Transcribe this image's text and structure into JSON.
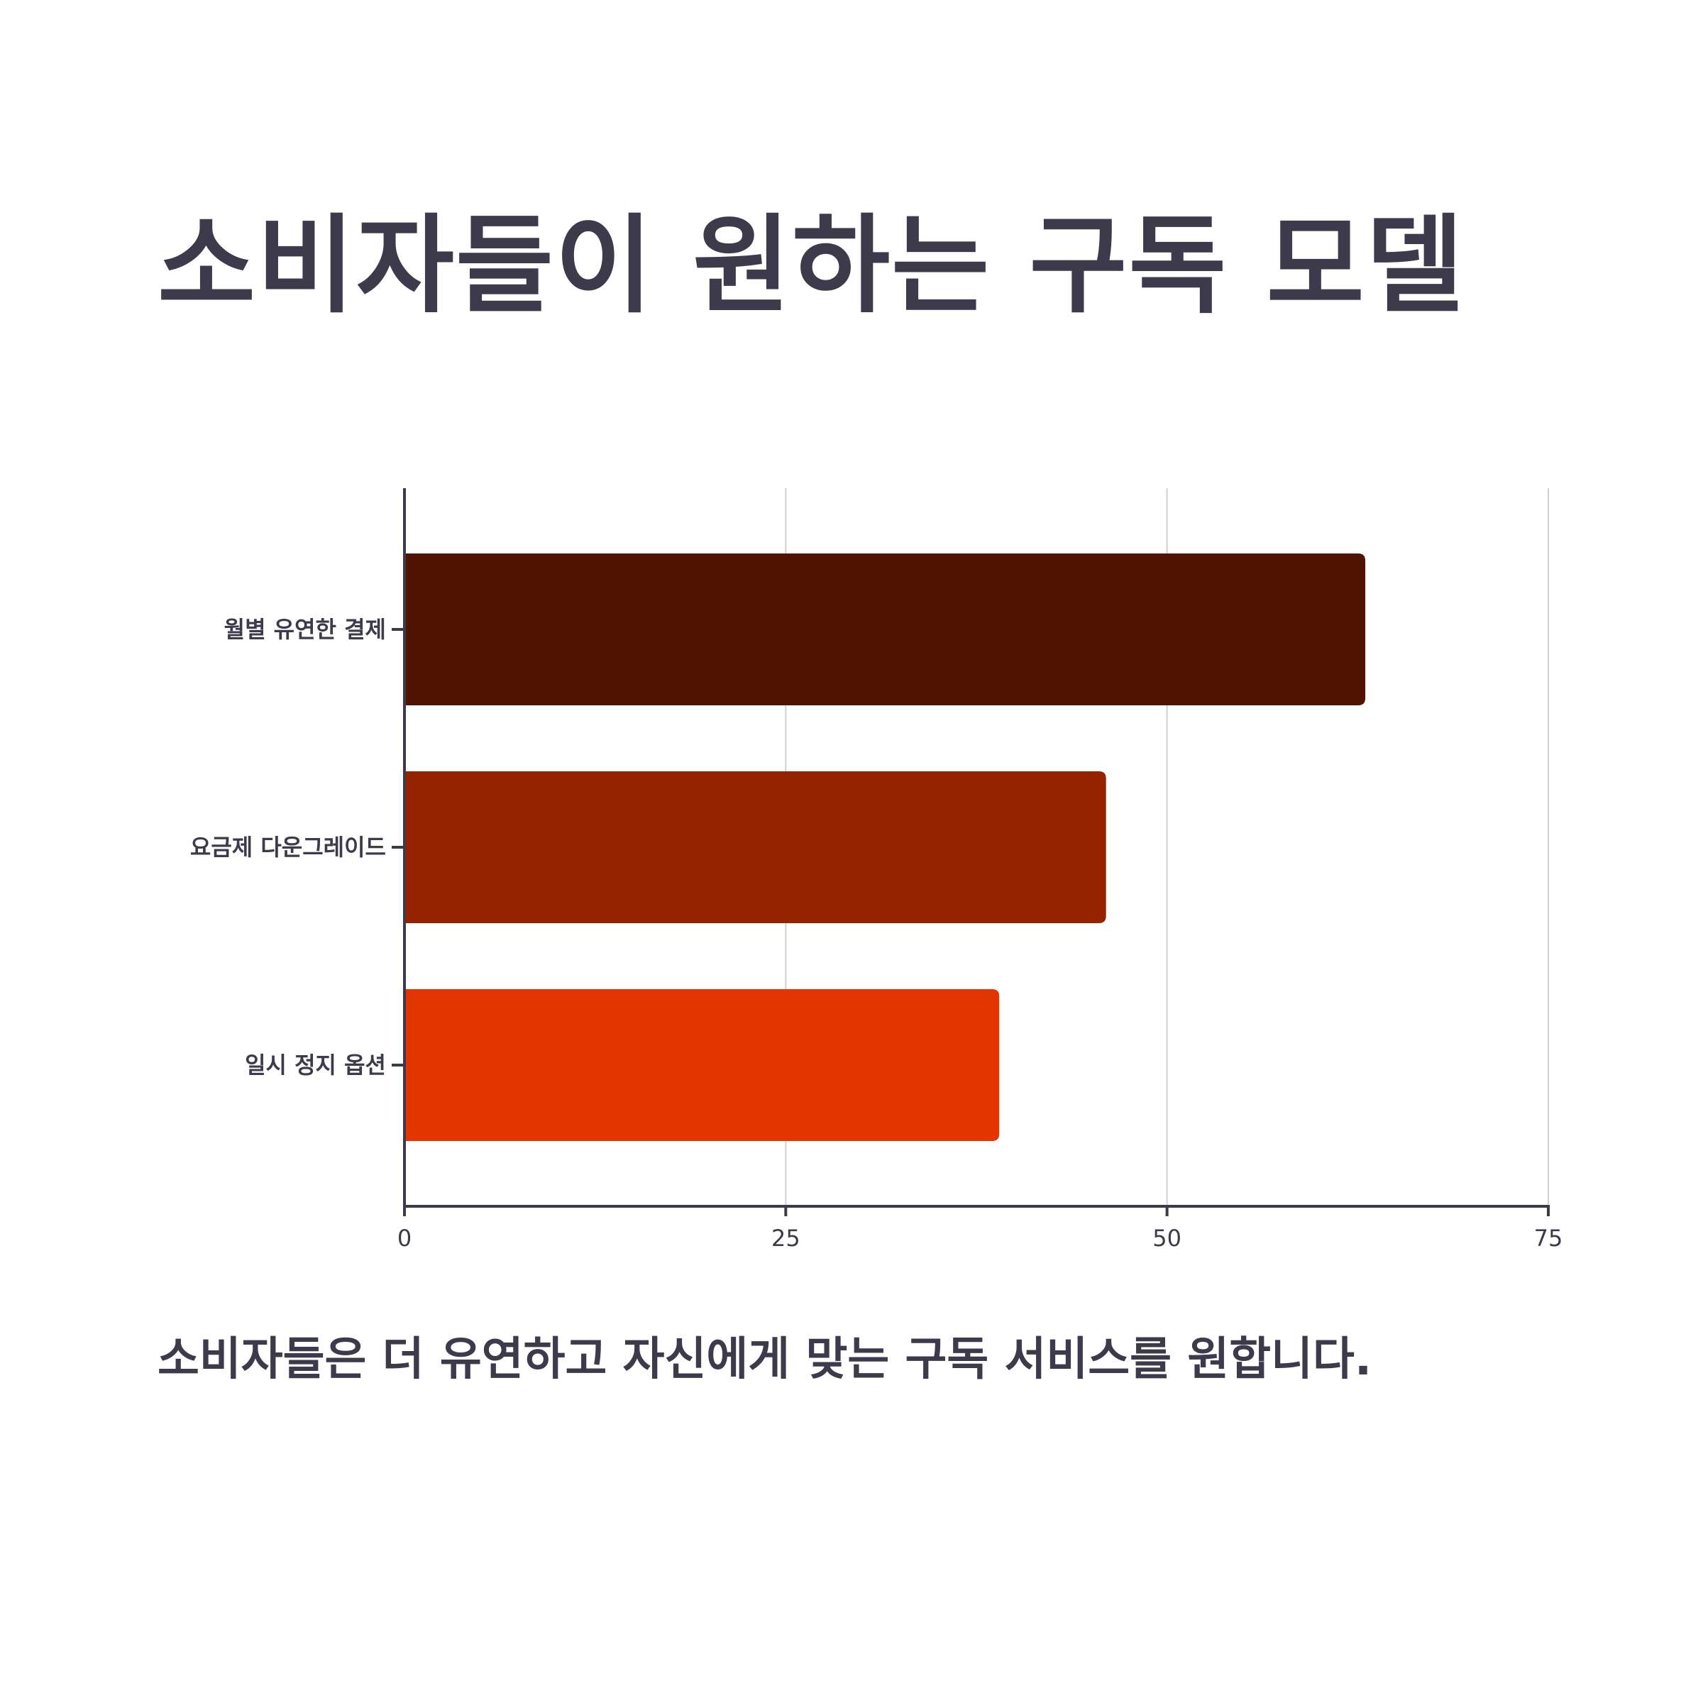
{
  "title": "소비자들이 원하는 구독 모델",
  "caption": "소비자들은 더 유연하고 자신에게 맞는 구독 서비스를 원합니다.",
  "chart_data": {
    "type": "bar",
    "orientation": "horizontal",
    "categories": [
      "월별 유연한 결제",
      "요금제 다운그레이드",
      "일시 정지 옵션"
    ],
    "values": [
      63,
      46,
      39
    ],
    "colors": [
      "#501400",
      "#962300",
      "#e33500"
    ],
    "xlim": [
      0,
      75
    ],
    "xticks": [
      "0",
      "25",
      "50",
      "75"
    ],
    "grid": "vertical",
    "axis_color": "#3d3a4b",
    "grid_color": "#d0d0d0"
  }
}
